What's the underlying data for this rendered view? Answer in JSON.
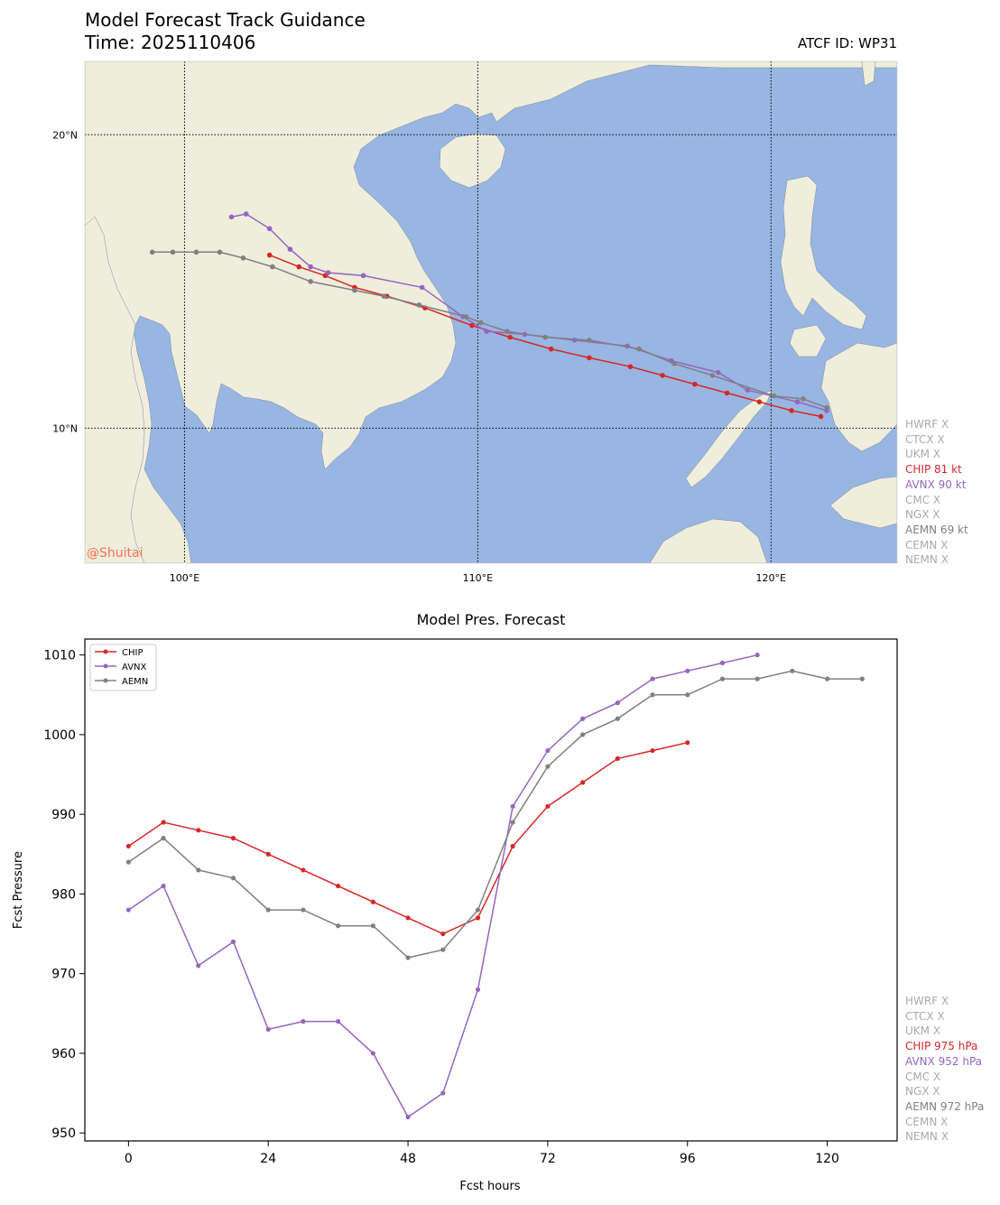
{
  "header": {
    "title": "Model Forecast Track Guidance",
    "time": "Time: 2025110406",
    "atcf": "ATCF ID: WP31"
  },
  "map": {
    "watermark": "@Shuitai",
    "lon_range": [
      96.6,
      124.3
    ],
    "lat_range": [
      5.4,
      22.5
    ],
    "lon_ticks": [
      {
        "v": 100,
        "label": "100°E"
      },
      {
        "v": 110,
        "label": "110°E"
      },
      {
        "v": 120,
        "label": "120°E"
      }
    ],
    "lat_ticks": [
      {
        "v": 20,
        "label": "20°N"
      },
      {
        "v": 10,
        "label": "10°N"
      }
    ],
    "colors": {
      "ocean": "#98b6e1",
      "land": "#efeedc",
      "coast": "#7d8aa0",
      "grid": "#000000"
    },
    "tracks": [
      {
        "model": "CHIP",
        "color": "#d62728",
        "points": [
          [
            121.7,
            10.4
          ],
          [
            120.7,
            10.6
          ],
          [
            119.6,
            10.9
          ],
          [
            118.5,
            11.2
          ],
          [
            117.4,
            11.5
          ],
          [
            116.3,
            11.8
          ],
          [
            115.2,
            12.1
          ],
          [
            113.8,
            12.4
          ],
          [
            112.5,
            12.7
          ],
          [
            111.1,
            13.1
          ],
          [
            109.8,
            13.5
          ],
          [
            108.2,
            14.1
          ],
          [
            106.9,
            14.5
          ],
          [
            105.8,
            14.8
          ],
          [
            104.8,
            15.2
          ],
          [
            103.9,
            15.5
          ],
          [
            102.9,
            15.9
          ]
        ]
      },
      {
        "model": "AVNX",
        "color": "#9467bd",
        "points": [
          [
            121.9,
            10.6
          ],
          [
            120.9,
            10.9
          ],
          [
            119.2,
            11.3
          ],
          [
            118.2,
            11.9
          ],
          [
            116.6,
            12.3
          ],
          [
            115.1,
            12.8
          ],
          [
            113.3,
            13.0
          ],
          [
            111.6,
            13.2
          ],
          [
            110.3,
            13.3
          ],
          [
            109.5,
            13.8
          ],
          [
            108.1,
            14.8
          ],
          [
            106.1,
            15.2
          ],
          [
            104.9,
            15.3
          ],
          [
            104.3,
            15.5
          ],
          [
            103.6,
            16.1
          ],
          [
            102.9,
            16.8
          ],
          [
            102.1,
            17.3
          ],
          [
            101.6,
            17.2
          ]
        ]
      },
      {
        "model": "AEMN",
        "color": "#808080",
        "points": [
          [
            121.9,
            10.7
          ],
          [
            121.1,
            11.0
          ],
          [
            120.1,
            11.1
          ],
          [
            118.0,
            11.8
          ],
          [
            116.7,
            12.2
          ],
          [
            115.5,
            12.7
          ],
          [
            113.8,
            13.0
          ],
          [
            112.3,
            13.1
          ],
          [
            111.0,
            13.3
          ],
          [
            110.1,
            13.6
          ],
          [
            109.6,
            13.8
          ],
          [
            108.0,
            14.2
          ],
          [
            106.8,
            14.5
          ],
          [
            105.8,
            14.7
          ],
          [
            104.3,
            15.0
          ],
          [
            103.0,
            15.5
          ],
          [
            102.0,
            15.8
          ],
          [
            101.2,
            16.0
          ],
          [
            100.4,
            16.0
          ],
          [
            99.6,
            16.0
          ],
          [
            98.9,
            16.0
          ]
        ]
      }
    ],
    "legend": [
      {
        "text": "HWRF X",
        "color": "#aaaaaa"
      },
      {
        "text": "CTCX X",
        "color": "#aaaaaa"
      },
      {
        "text": "UKM X",
        "color": "#aaaaaa"
      },
      {
        "text": "CHIP 81 kt",
        "color": "#d62728"
      },
      {
        "text": "AVNX 90 kt",
        "color": "#9467bd"
      },
      {
        "text": "CMC X",
        "color": "#aaaaaa"
      },
      {
        "text": "NGX X",
        "color": "#aaaaaa"
      },
      {
        "text": "AEMN 69 kt",
        "color": "#808080"
      },
      {
        "text": "CEMN X",
        "color": "#aaaaaa"
      },
      {
        "text": "NEMN X",
        "color": "#aaaaaa"
      }
    ]
  },
  "chart_data": {
    "type": "line",
    "title": "Model Pres. Forecast",
    "xlabel": "Fcst hours",
    "ylabel": "Fcst Pressure",
    "xlim": [
      -7.5,
      132
    ],
    "ylim": [
      949,
      1012
    ],
    "xticks": [
      0,
      24,
      48,
      72,
      96,
      120
    ],
    "yticks": [
      950,
      960,
      970,
      980,
      990,
      1000,
      1010
    ],
    "legend_position": "top-left",
    "series": [
      {
        "name": "CHIP",
        "color": "#d62728",
        "x": [
          0,
          6,
          12,
          18,
          24,
          30,
          36,
          42,
          48,
          54,
          60,
          66,
          72,
          78,
          84,
          90,
          96
        ],
        "values": [
          986,
          989,
          988,
          987,
          985,
          983,
          981,
          979,
          977,
          975,
          977,
          986,
          991,
          994,
          997,
          998,
          999
        ]
      },
      {
        "name": "AVNX",
        "color": "#9467bd",
        "x": [
          0,
          6,
          12,
          18,
          24,
          30,
          36,
          42,
          48,
          54,
          60,
          66,
          72,
          78,
          84,
          90,
          96,
          102,
          108
        ],
        "values": [
          978,
          981,
          971,
          974,
          963,
          964,
          964,
          960,
          952,
          955,
          968,
          991,
          998,
          1002,
          1004,
          1007,
          1008,
          1009,
          1010
        ]
      },
      {
        "name": "AEMN",
        "color": "#808080",
        "x": [
          0,
          6,
          12,
          18,
          24,
          30,
          36,
          42,
          48,
          54,
          60,
          66,
          72,
          78,
          84,
          90,
          96,
          102,
          108,
          114,
          120,
          126
        ],
        "values": [
          984,
          987,
          983,
          982,
          978,
          978,
          976,
          976,
          972,
          973,
          978,
          989,
          996,
          1000,
          1002,
          1005,
          1005,
          1007,
          1007,
          1008,
          1007,
          1007
        ]
      }
    ],
    "side_legend": [
      {
        "text": "HWRF X",
        "color": "#aaaaaa"
      },
      {
        "text": "CTCX X",
        "color": "#aaaaaa"
      },
      {
        "text": "UKM X",
        "color": "#aaaaaa"
      },
      {
        "text": "CHIP 975 hPa",
        "color": "#d62728"
      },
      {
        "text": "AVNX 952 hPa",
        "color": "#9467bd"
      },
      {
        "text": "CMC X",
        "color": "#aaaaaa"
      },
      {
        "text": "NGX X",
        "color": "#aaaaaa"
      },
      {
        "text": "AEMN 972 hPa",
        "color": "#808080"
      },
      {
        "text": "CEMN X",
        "color": "#aaaaaa"
      },
      {
        "text": "NEMN X",
        "color": "#aaaaaa"
      }
    ]
  }
}
